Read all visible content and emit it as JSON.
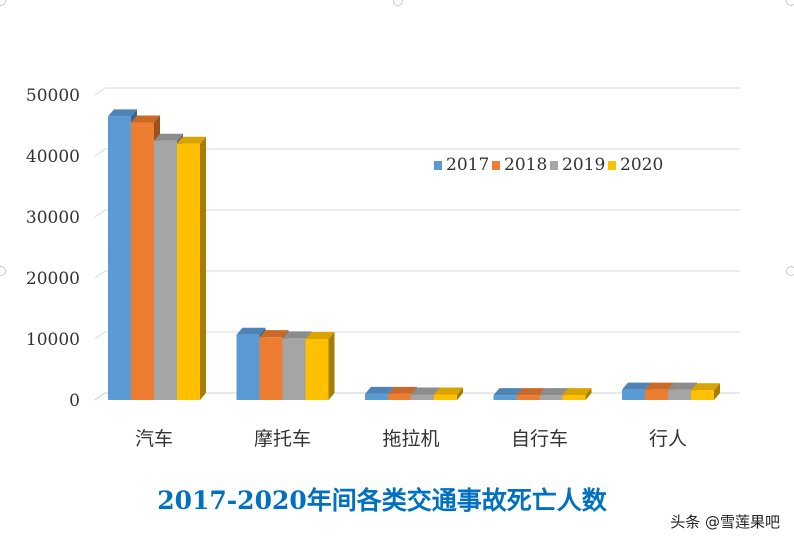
{
  "chart_data": {
    "type": "bar",
    "title": "2017-2020年间各类交通事故死亡人数",
    "categories": [
      "汽车",
      "摩托车",
      "拖拉机",
      "自行车",
      "行人"
    ],
    "series": [
      {
        "name": "2017",
        "color": "#5B9BD5",
        "values": [
          46500,
          10700,
          1000,
          800,
          1700
        ]
      },
      {
        "name": "2018",
        "color": "#ED7D31",
        "values": [
          45500,
          10300,
          1000,
          800,
          1700
        ]
      },
      {
        "name": "2019",
        "color": "#A5A5A5",
        "values": [
          42500,
          10100,
          900,
          800,
          1700
        ]
      },
      {
        "name": "2020",
        "color": "#FFC000",
        "values": [
          42000,
          10000,
          900,
          800,
          1600
        ]
      }
    ],
    "yticks": [
      "0",
      "10000",
      "20000",
      "30000",
      "40000",
      "50000"
    ],
    "ylim": [
      0,
      50000
    ],
    "grid": true,
    "legend_position": "top-right",
    "title_color": "#0070C0"
  },
  "watermark": "头条 @雪莲果吧"
}
